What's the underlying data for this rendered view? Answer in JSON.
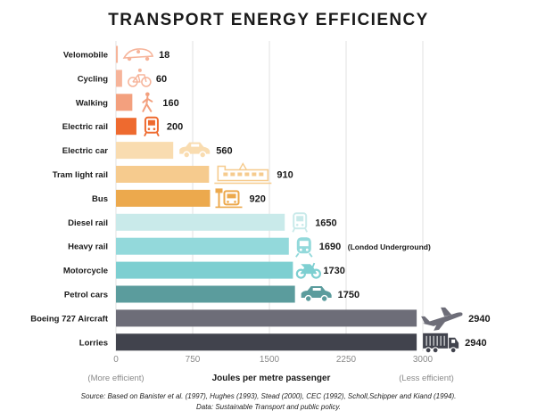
{
  "chart_data": {
    "type": "bar",
    "orientation": "horizontal",
    "title": "TRANSPORT ENERGY EFFICIENCY",
    "xlabel": "Joules per metre passenger",
    "xlim": [
      0,
      3000
    ],
    "ticks": [
      0,
      750,
      1500,
      2250,
      3000
    ],
    "tick_labels": [
      "0",
      "750",
      "1500",
      "2250",
      "3000"
    ],
    "axis_note_left": "(More efficient)",
    "axis_note_right": "(Less efficient)",
    "grid": true,
    "categories": [
      "Velomobile",
      "Cycling",
      "Walking",
      "Electric rail",
      "Electric car",
      "Tram light rail",
      "Bus",
      "Diesel rail",
      "Heavy rail",
      "Motorcycle",
      "Petrol cars",
      "Boeing 727 Aircraft",
      "Lorries"
    ],
    "values": [
      18,
      60,
      160,
      200,
      560,
      910,
      920,
      1650,
      1690,
      1730,
      1750,
      2940,
      2940
    ],
    "value_labels": [
      "18",
      "60",
      "160",
      "200",
      "560",
      "910",
      "920",
      "1650",
      "1690",
      "1730",
      "1750",
      "2940",
      "2940"
    ],
    "value_notes": [
      "",
      "",
      "",
      "",
      "",
      "",
      "",
      "",
      "(Londod Underground)",
      "",
      "",
      "",
      ""
    ],
    "colors": [
      "#f6b49a",
      "#f6b49a",
      "#f3a07e",
      "#ee6a2f",
      "#f9dcb0",
      "#f6cb8e",
      "#eca94d",
      "#c9eaea",
      "#93d9db",
      "#7dcfd1",
      "#5b9c9d",
      "#6d6d78",
      "#41434d"
    ],
    "icons": [
      "velomobile-icon",
      "bicycle-icon",
      "walking-person-icon",
      "train-icon",
      "car-icon",
      "tram-icon",
      "bus-stop-icon",
      "train-icon",
      "metro-icon",
      "motorcycle-icon",
      "car-icon",
      "airplane-icon",
      "truck-icon"
    ]
  },
  "source": {
    "line1": "Source: Based on Banister et al. (1997), Hughes (1993), Stead (2000), CEC (1992), Scholl,Schipper and Kiand (1994).",
    "line2": "Data: Sustainable Transport and public policy."
  }
}
